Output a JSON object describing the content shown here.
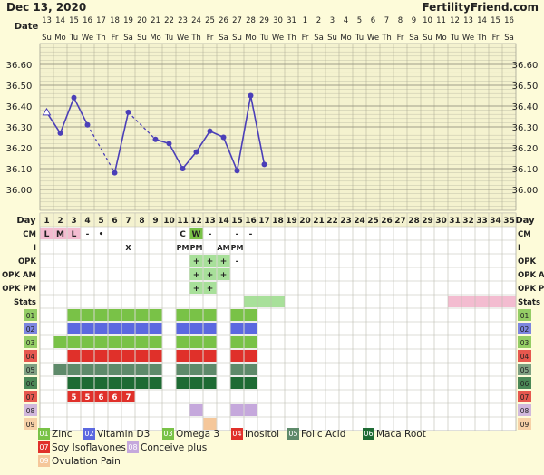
{
  "header": {
    "date": "Dec 13, 2020",
    "brand": "FertilityFriend.com"
  },
  "top_row": {
    "date_label": "Date",
    "dates": [
      "13",
      "14",
      "15",
      "16",
      "17",
      "18",
      "19",
      "20",
      "21",
      "22",
      "23",
      "24",
      "25",
      "26",
      "27",
      "28",
      "29",
      "30",
      "31",
      "1",
      "2",
      "3",
      "4",
      "5",
      "6",
      "7",
      "8",
      "9",
      "10",
      "11",
      "12",
      "13",
      "14",
      "15",
      "16"
    ],
    "weekdays": [
      "Su",
      "Mo",
      "Tu",
      "We",
      "Th",
      "Fr",
      "Sa",
      "Su",
      "Mo",
      "Tu",
      "We",
      "Th",
      "Fr",
      "Sa",
      "Su",
      "Mo",
      "Tu",
      "We",
      "Th",
      "Fr",
      "Sa",
      "Su",
      "Mo",
      "Tu",
      "We",
      "Th",
      "Fr",
      "Sa",
      "Su",
      "Mo",
      "Tu",
      "We",
      "Th",
      "Fr",
      "Sa"
    ]
  },
  "chart_data": {
    "type": "line",
    "title": "",
    "xlabel": "Day",
    "ylabel": "",
    "ylim": [
      35.9,
      36.7
    ],
    "y_ticks": [
      "36.60",
      "36.50",
      "36.40",
      "36.30",
      "36.20",
      "36.10",
      "36.00"
    ],
    "grid": true,
    "series": [
      {
        "values": [
          {
            "day": 1,
            "temp": 36.37,
            "marker": "open-triangle"
          },
          {
            "day": 2,
            "temp": 36.27
          },
          {
            "day": 3,
            "temp": 36.44
          },
          {
            "day": 4,
            "temp": 36.31
          },
          {
            "day": 6,
            "temp": 36.08
          },
          {
            "day": 7,
            "temp": 36.37
          },
          {
            "day": 9,
            "temp": 36.24
          },
          {
            "day": 10,
            "temp": 36.22
          },
          {
            "day": 11,
            "temp": 36.1
          },
          {
            "day": 12,
            "temp": 36.18
          },
          {
            "day": 13,
            "temp": 36.28
          },
          {
            "day": 14,
            "temp": 36.25
          },
          {
            "day": 15,
            "temp": 36.09
          },
          {
            "day": 16,
            "temp": 36.45
          },
          {
            "day": 17,
            "temp": 36.12
          }
        ]
      }
    ],
    "dashed_segments": [
      [
        4,
        6
      ],
      [
        7,
        9
      ]
    ]
  },
  "rows": {
    "day_label": "Day",
    "days": [
      "1",
      "2",
      "3",
      "4",
      "5",
      "6",
      "7",
      "8",
      "9",
      "10",
      "11",
      "12",
      "13",
      "14",
      "15",
      "16",
      "17",
      "18",
      "19",
      "20",
      "21",
      "22",
      "23",
      "24",
      "25",
      "26",
      "27",
      "28",
      "29",
      "30",
      "31",
      "32",
      "33",
      "34",
      "35"
    ],
    "labels": {
      "cm": "CM",
      "i": "I",
      "opk": "OPK",
      "opk_am": "OPK AM",
      "opk_pm": "OPK PM",
      "stats": "Stats"
    },
    "cm": [
      {
        "day": 1,
        "text": "L"
      },
      {
        "day": 2,
        "text": "M"
      },
      {
        "day": 3,
        "text": "L"
      },
      {
        "day": 4,
        "text": "-"
      },
      {
        "day": 5,
        "text": "•"
      },
      {
        "day": 11,
        "text": "C"
      },
      {
        "day": 12,
        "text": "W"
      },
      {
        "day": 13,
        "text": "-"
      },
      {
        "day": 15,
        "text": "-"
      },
      {
        "day": 16,
        "text": "-"
      }
    ],
    "intercourse": [
      {
        "day": 7,
        "text": "X"
      },
      {
        "day": 11,
        "text": "PM"
      },
      {
        "day": 12,
        "text": "PM"
      },
      {
        "day": 14,
        "text": "AM"
      },
      {
        "day": 15,
        "text": "PM"
      }
    ],
    "opk": [
      {
        "day": 12,
        "text": "+"
      },
      {
        "day": 13,
        "text": "+"
      },
      {
        "day": 14,
        "text": "+"
      },
      {
        "day": 15,
        "text": "-"
      }
    ],
    "opk_am": [
      {
        "day": 12,
        "text": "+"
      },
      {
        "day": 13,
        "text": "+"
      },
      {
        "day": 14,
        "text": "+"
      }
    ],
    "opk_pm": [
      {
        "day": 12,
        "text": "+"
      },
      {
        "day": 13,
        "text": "+"
      }
    ],
    "stats_ranges": [
      {
        "from": 16,
        "to": 18,
        "color": "#a8e09a"
      },
      {
        "from": 31,
        "to": 35,
        "color": "#f3bcd0"
      }
    ]
  },
  "supplements": [
    {
      "code": "01",
      "name": "Zinc",
      "color": "#79c247",
      "days": [
        3,
        4,
        5,
        6,
        7,
        8,
        9,
        11,
        12,
        13,
        15,
        16
      ]
    },
    {
      "code": "02",
      "name": "Vitamin D3",
      "color": "#5b68e0",
      "days": [
        3,
        4,
        5,
        6,
        7,
        8,
        9,
        11,
        12,
        13,
        15,
        16
      ]
    },
    {
      "code": "03",
      "name": "Omega 3",
      "color": "#79c247",
      "days": [
        2,
        3,
        4,
        5,
        6,
        7,
        8,
        9,
        11,
        12,
        13,
        15,
        16
      ]
    },
    {
      "code": "04",
      "name": "Inositol",
      "color": "#e0302a",
      "days": [
        3,
        4,
        5,
        6,
        7,
        8,
        9,
        11,
        12,
        13,
        15,
        16
      ]
    },
    {
      "code": "05",
      "name": "Folic Acid",
      "color": "#5e8a6a",
      "days": [
        2,
        3,
        4,
        5,
        6,
        7,
        8,
        9,
        11,
        12,
        13,
        15,
        16
      ]
    },
    {
      "code": "06",
      "name": "Maca Root",
      "color": "#1e6b34",
      "days": [
        3,
        4,
        5,
        6,
        7,
        8,
        9,
        11,
        12,
        13,
        15,
        16
      ]
    },
    {
      "code": "07",
      "name": "Soy Isoflavones",
      "color": "#e0302a",
      "days": [
        3,
        4,
        5,
        6,
        7
      ],
      "labels": {
        "3": "5",
        "4": "5",
        "5": "6",
        "6": "6",
        "7": "7"
      }
    },
    {
      "code": "08",
      "name": "Conceive plus",
      "color": "#c5a8dc",
      "days": [
        12,
        15,
        16
      ]
    },
    {
      "code": "09",
      "name": "Ovulation Pain",
      "color": "#f5c79a",
      "days": [
        13
      ]
    }
  ]
}
